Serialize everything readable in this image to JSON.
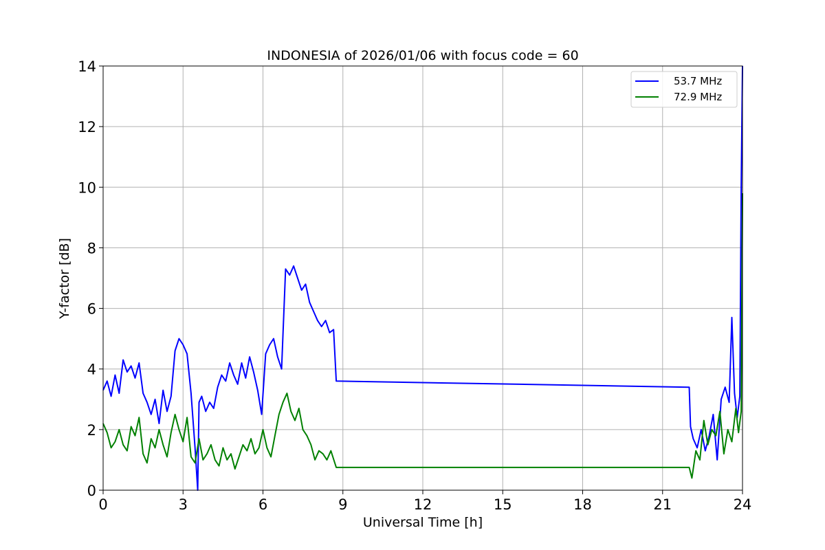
{
  "chart_data": {
    "type": "line",
    "title": "INDONESIA of 2026/01/06 with focus code = 60",
    "xlabel": "Universal Time [h]",
    "ylabel": "Y-factor [dB]",
    "xlim": [
      0,
      24
    ],
    "ylim": [
      0,
      14
    ],
    "xticks": [
      0,
      3,
      6,
      9,
      12,
      15,
      18,
      21,
      24
    ],
    "yticks": [
      0,
      2,
      4,
      6,
      8,
      10,
      12,
      14
    ],
    "grid": true,
    "legend_position": "upper right",
    "series": [
      {
        "name": "53.7 MHz",
        "color": "#0000ff",
        "x": [
          0.0,
          0.15,
          0.3,
          0.45,
          0.6,
          0.75,
          0.9,
          1.05,
          1.2,
          1.35,
          1.5,
          1.65,
          1.8,
          1.95,
          2.1,
          2.25,
          2.4,
          2.55,
          2.7,
          2.85,
          3.0,
          3.15,
          3.3,
          3.45,
          3.55,
          3.6,
          3.7,
          3.85,
          4.0,
          4.15,
          4.3,
          4.45,
          4.6,
          4.75,
          4.9,
          5.05,
          5.2,
          5.35,
          5.5,
          5.65,
          5.8,
          5.95,
          6.1,
          6.25,
          6.4,
          6.55,
          6.7,
          6.85,
          7.0,
          7.15,
          7.3,
          7.45,
          7.6,
          7.75,
          7.9,
          8.05,
          8.2,
          8.35,
          8.5,
          8.65,
          8.75,
          22.0,
          22.05,
          22.15,
          22.3,
          22.45,
          22.6,
          22.75,
          22.9,
          23.05,
          23.2,
          23.35,
          23.5,
          23.6,
          23.7,
          23.8,
          23.9,
          23.95,
          24.0
        ],
        "y": [
          3.3,
          3.6,
          3.1,
          3.8,
          3.2,
          4.3,
          3.9,
          4.1,
          3.7,
          4.2,
          3.2,
          2.9,
          2.5,
          3.0,
          2.2,
          3.3,
          2.6,
          3.1,
          4.6,
          5.0,
          4.8,
          4.5,
          3.2,
          1.4,
          0.0,
          2.9,
          3.1,
          2.6,
          2.9,
          2.7,
          3.4,
          3.8,
          3.6,
          4.2,
          3.8,
          3.5,
          4.2,
          3.7,
          4.4,
          3.9,
          3.3,
          2.5,
          4.5,
          4.8,
          5.0,
          4.4,
          4.0,
          7.3,
          7.1,
          7.4,
          7.0,
          6.6,
          6.8,
          6.2,
          5.9,
          5.6,
          5.4,
          5.6,
          5.2,
          5.3,
          3.6,
          3.4,
          2.1,
          1.7,
          1.4,
          2.0,
          1.3,
          1.8,
          2.5,
          1.0,
          3.0,
          3.4,
          2.9,
          5.7,
          3.2,
          2.4,
          3.1,
          10.0,
          14.0
        ]
      },
      {
        "name": "72.9 MHz",
        "color": "#008000",
        "x": [
          0.0,
          0.15,
          0.3,
          0.45,
          0.6,
          0.75,
          0.9,
          1.05,
          1.2,
          1.35,
          1.5,
          1.65,
          1.8,
          1.95,
          2.1,
          2.25,
          2.4,
          2.55,
          2.7,
          2.85,
          3.0,
          3.15,
          3.3,
          3.45,
          3.6,
          3.75,
          3.9,
          4.05,
          4.2,
          4.35,
          4.5,
          4.65,
          4.8,
          4.95,
          5.1,
          5.25,
          5.4,
          5.55,
          5.7,
          5.85,
          6.0,
          6.15,
          6.3,
          6.45,
          6.6,
          6.75,
          6.9,
          7.05,
          7.2,
          7.35,
          7.5,
          7.65,
          7.8,
          7.95,
          8.1,
          8.25,
          8.4,
          8.55,
          8.75,
          22.0,
          22.1,
          22.25,
          22.4,
          22.55,
          22.7,
          22.85,
          23.0,
          23.15,
          23.3,
          23.45,
          23.6,
          23.75,
          23.85,
          23.95,
          24.0
        ],
        "y": [
          2.2,
          1.9,
          1.4,
          1.6,
          2.0,
          1.5,
          1.3,
          2.1,
          1.8,
          2.4,
          1.2,
          0.9,
          1.7,
          1.4,
          2.0,
          1.5,
          1.1,
          1.9,
          2.5,
          2.0,
          1.6,
          2.4,
          1.1,
          0.9,
          1.7,
          1.0,
          1.2,
          1.5,
          1.0,
          0.8,
          1.4,
          1.0,
          1.2,
          0.7,
          1.1,
          1.5,
          1.3,
          1.7,
          1.2,
          1.4,
          2.0,
          1.4,
          1.1,
          1.8,
          2.5,
          2.9,
          3.2,
          2.6,
          2.3,
          2.7,
          2.0,
          1.8,
          1.5,
          1.0,
          1.3,
          1.2,
          1.0,
          1.3,
          0.75,
          0.75,
          0.4,
          1.3,
          1.0,
          2.3,
          1.5,
          2.0,
          1.8,
          2.6,
          1.2,
          2.0,
          1.6,
          2.7,
          1.9,
          2.6,
          9.8
        ]
      }
    ]
  }
}
